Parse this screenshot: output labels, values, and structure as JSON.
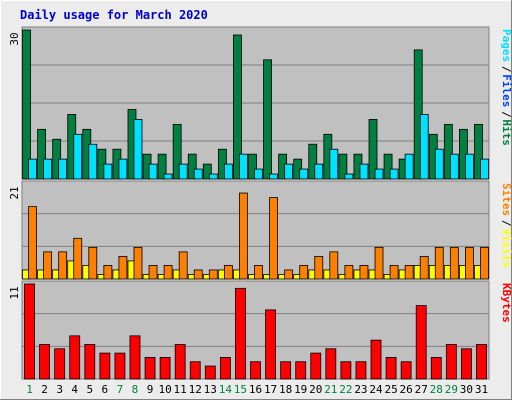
{
  "title": "Daily usage for March 2020",
  "colors": {
    "background": "#ececec",
    "plot_bg": "#c0c0c0",
    "title": "#0000cc",
    "hits": "#008040",
    "files": "#0040ff",
    "pages": "#00e0ff",
    "visits": "#ffff00",
    "sites": "#ff8000",
    "kbytes": "#ff0000",
    "weekend_label": "#008040",
    "weekday_label": "#000000"
  },
  "chart_data": [
    {
      "type": "bar",
      "panel": "top",
      "ymax_label": "30",
      "ylim": [
        0,
        30
      ],
      "legend_placement": "right",
      "legend": [
        {
          "text": "Hits",
          "color": "#008040"
        },
        {
          "text": "Files",
          "color": "#0040ff"
        },
        {
          "text": "Pages",
          "color": "#00e0ff"
        }
      ],
      "categories": [
        "1",
        "2",
        "3",
        "4",
        "5",
        "6",
        "7",
        "8",
        "9",
        "10",
        "11",
        "12",
        "13",
        "14",
        "15",
        "16",
        "17",
        "18",
        "19",
        "20",
        "21",
        "22",
        "23",
        "24",
        "25",
        "26",
        "27",
        "28",
        "29",
        "30",
        "31"
      ],
      "series": [
        {
          "name": "Hits",
          "color": "#008040",
          "values": [
            30,
            10,
            8,
            13,
            10,
            6,
            6,
            14,
            5,
            5,
            11,
            5,
            3,
            6,
            29,
            5,
            24,
            5,
            4,
            7,
            9,
            5,
            5,
            12,
            5,
            4,
            26,
            9,
            11,
            10,
            11
          ]
        },
        {
          "name": "Pages",
          "color": "#00e0ff",
          "values": [
            4,
            4,
            4,
            9,
            7,
            3,
            4,
            12,
            3,
            1,
            3,
            2,
            1,
            3,
            5,
            2,
            1,
            3,
            2,
            3,
            6,
            1,
            3,
            2,
            2,
            5,
            13,
            6,
            5,
            5,
            4
          ]
        }
      ]
    },
    {
      "type": "bar",
      "panel": "middle",
      "ymax_label": "21",
      "ylim": [
        0,
        21
      ],
      "legend_placement": "right",
      "legend": [
        {
          "text": "Visits",
          "color": "#ffff00"
        },
        {
          "text": "Sites",
          "color": "#ff8000"
        }
      ],
      "categories": [
        "1",
        "2",
        "3",
        "4",
        "5",
        "6",
        "7",
        "8",
        "9",
        "10",
        "11",
        "12",
        "13",
        "14",
        "15",
        "16",
        "17",
        "18",
        "19",
        "20",
        "21",
        "22",
        "23",
        "24",
        "25",
        "26",
        "27",
        "28",
        "29",
        "30",
        "31"
      ],
      "series": [
        {
          "name": "Visits",
          "color": "#ffff00",
          "values": [
            2,
            2,
            2,
            4,
            3,
            1,
            2,
            4,
            1,
            1,
            2,
            1,
            1,
            2,
            2,
            1,
            1,
            1,
            1,
            2,
            2,
            1,
            2,
            2,
            1,
            2,
            3,
            3,
            3,
            3,
            3
          ]
        },
        {
          "name": "Sites",
          "color": "#ff8000",
          "values": [
            16,
            6,
            6,
            9,
            7,
            3,
            5,
            7,
            3,
            3,
            6,
            2,
            2,
            3,
            19,
            3,
            18,
            2,
            3,
            5,
            6,
            3,
            3,
            7,
            3,
            3,
            5,
            7,
            7,
            7,
            7
          ]
        }
      ]
    },
    {
      "type": "bar",
      "panel": "bottom",
      "ymax_label": "11",
      "ylim": [
        0,
        11
      ],
      "legend_placement": "right",
      "legend": [
        {
          "text": "KBytes",
          "color": "#ff0000"
        }
      ],
      "categories": [
        "1",
        "2",
        "3",
        "4",
        "5",
        "6",
        "7",
        "8",
        "9",
        "10",
        "11",
        "12",
        "13",
        "14",
        "15",
        "16",
        "17",
        "18",
        "19",
        "20",
        "21",
        "22",
        "23",
        "24",
        "25",
        "26",
        "27",
        "28",
        "29",
        "30",
        "31"
      ],
      "series": [
        {
          "name": "KBytes",
          "color": "#ff0000",
          "values": [
            11,
            4,
            3.5,
            5,
            4,
            3,
            3,
            5,
            2.5,
            2.5,
            4,
            2,
            1.5,
            2.5,
            10.5,
            2,
            8,
            2,
            2,
            3,
            3.5,
            2,
            2,
            4.5,
            2.5,
            2,
            8.5,
            2.5,
            4,
            3.5,
            4
          ]
        }
      ]
    }
  ],
  "x_axis": {
    "labels": [
      "1",
      "2",
      "3",
      "4",
      "5",
      "6",
      "7",
      "8",
      "9",
      "10",
      "11",
      "12",
      "13",
      "14",
      "15",
      "16",
      "17",
      "18",
      "19",
      "20",
      "21",
      "22",
      "23",
      "24",
      "25",
      "26",
      "27",
      "28",
      "29",
      "30",
      "31"
    ],
    "weekend_days": [
      1,
      7,
      8,
      14,
      15,
      21,
      22,
      28,
      29
    ]
  }
}
